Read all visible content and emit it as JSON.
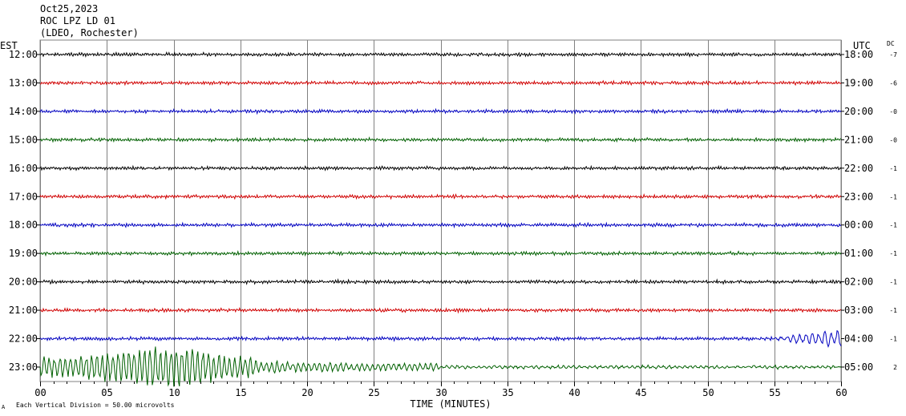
{
  "header": {
    "date": "Oct25,2023",
    "station": "ROC LPZ LD 01",
    "network": "(LDEO, Rochester)"
  },
  "axis_left_title": "EST",
  "axis_right_title": "UTC",
  "dc_title": "DC",
  "footer": {
    "logo": "A",
    "scale_note": "Each Vertical Division =   50.00 microvolts"
  },
  "colors": {
    "black": "#000000",
    "red": "#d00000",
    "blue": "#0000c0",
    "green": "#006000",
    "grid": "#808080"
  },
  "chart_data": {
    "type": "line",
    "title": "",
    "xlabel": "TIME (MINUTES)",
    "ylabel": "",
    "xlim": [
      0,
      60
    ],
    "xticks": [
      0,
      5,
      10,
      15,
      20,
      25,
      30,
      35,
      40,
      45,
      50,
      55,
      60
    ],
    "xtick_labels": [
      "00",
      "05",
      "10",
      "15",
      "20",
      "25",
      "30",
      "35",
      "40",
      "45",
      "50",
      "55",
      "60"
    ],
    "grid": true,
    "rows": [
      {
        "est": "12:00",
        "utc": "18:00",
        "dc": "-7",
        "color": "black"
      },
      {
        "est": "13:00",
        "utc": "19:00",
        "dc": "-6",
        "color": "red"
      },
      {
        "est": "14:00",
        "utc": "20:00",
        "dc": "-0",
        "color": "blue"
      },
      {
        "est": "15:00",
        "utc": "21:00",
        "dc": "-0",
        "color": "green"
      },
      {
        "est": "16:00",
        "utc": "22:00",
        "dc": "-1",
        "color": "black"
      },
      {
        "est": "17:00",
        "utc": "23:00",
        "dc": "-1",
        "color": "red"
      },
      {
        "est": "18:00",
        "utc": "00:00",
        "dc": "-1",
        "color": "blue"
      },
      {
        "est": "19:00",
        "utc": "01:00",
        "dc": "-1",
        "color": "green"
      },
      {
        "est": "20:00",
        "utc": "02:00",
        "dc": "-1",
        "color": "black"
      },
      {
        "est": "21:00",
        "utc": "03:00",
        "dc": "-1",
        "color": "red"
      },
      {
        "est": "22:00",
        "utc": "04:00",
        "dc": "-1",
        "color": "blue"
      },
      {
        "est": "23:00",
        "utc": "05:00",
        "dc": "2",
        "color": "green"
      }
    ]
  }
}
